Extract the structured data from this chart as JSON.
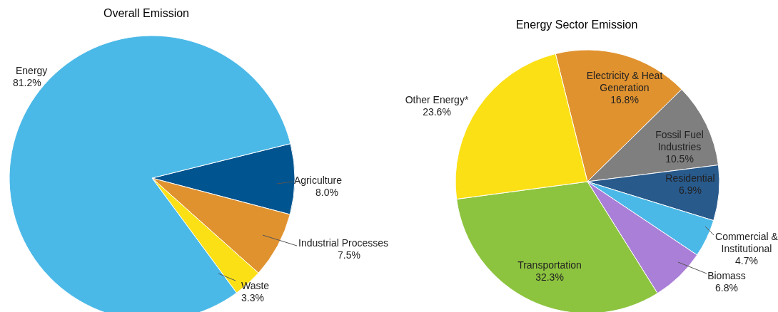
{
  "chart_data": [
    {
      "type": "pie",
      "title": "Overall Emission",
      "categories": [
        "Agriculture",
        "Industrial Processes",
        "Waste",
        "Energy"
      ],
      "values": [
        8.0,
        7.5,
        3.3,
        81.2
      ],
      "colors": [
        "#00548f",
        "#e0922f",
        "#fbe016",
        "#4bb9e8"
      ],
      "value_labels": [
        "8.0%",
        "7.5%",
        "3.3%",
        "81.2%"
      ]
    },
    {
      "type": "pie",
      "title": "Energy Sector Emission",
      "categories": [
        "Electricity & Heat Generation",
        "Fossil Fuel Industries",
        "Residential",
        "Commercial & Institutional",
        "Biomass",
        "Transportation",
        "Other Energy*"
      ],
      "values": [
        16.8,
        10.5,
        6.9,
        4.7,
        6.8,
        32.3,
        23.6
      ],
      "colors": [
        "#e0922f",
        "#7f7f7f",
        "#285a8c",
        "#4bb9e8",
        "#aa7fd8",
        "#8dc43f",
        "#fbe016"
      ],
      "value_labels": [
        "16.8%",
        "10.5%",
        "6.9%",
        "4.7%",
        "6.8%",
        "32.3%",
        "23.6%"
      ]
    }
  ]
}
